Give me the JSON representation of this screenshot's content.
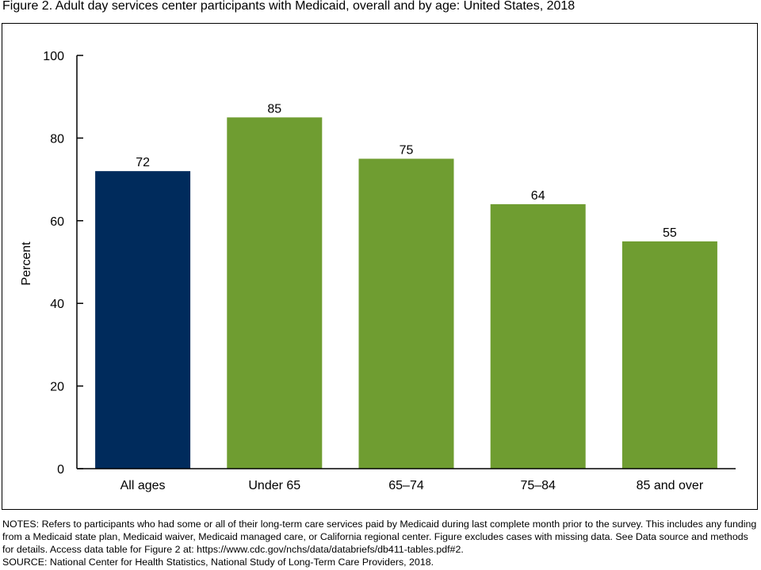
{
  "figure_title": "Figure 2. Adult day services center participants with Medicaid, overall and by age: United States, 2018",
  "notes": "NOTES: Refers to participants who had some or all of their long-term care services paid by Medicaid during last complete month prior to the survey. This includes any funding from a Medicaid state plan, Medicaid waiver, Medicaid managed care, or California regional center. Figure excludes cases with missing data. See Data source and methods for details. Access data table for Figure 2 at: https://www.cdc.gov/nchs/data/databriefs/db411-tables.pdf#2.",
  "source": "SOURCE: National Center for Health Statistics, National Study of Long-Term Care Providers, 2018.",
  "colors": {
    "all_ages_bar": "#002b5c",
    "age_group_bar": "#6f9d31"
  },
  "chart_data": {
    "type": "bar",
    "title": "Figure 2. Adult day services center participants with Medicaid, overall and by age: United States, 2018",
    "xlabel": "",
    "ylabel": "Percent",
    "ylim": [
      0,
      100
    ],
    "yticks": [
      0,
      20,
      40,
      60,
      80,
      100
    ],
    "grid": false,
    "categories": [
      "All ages",
      "Under 65",
      "65–74",
      "75–84",
      "85 and over"
    ],
    "values": [
      72,
      85,
      75,
      64,
      55
    ],
    "data_labels": [
      "72",
      "85",
      "75",
      "64",
      "55"
    ],
    "bar_colors": [
      "#002b5c",
      "#6f9d31",
      "#6f9d31",
      "#6f9d31",
      "#6f9d31"
    ]
  }
}
